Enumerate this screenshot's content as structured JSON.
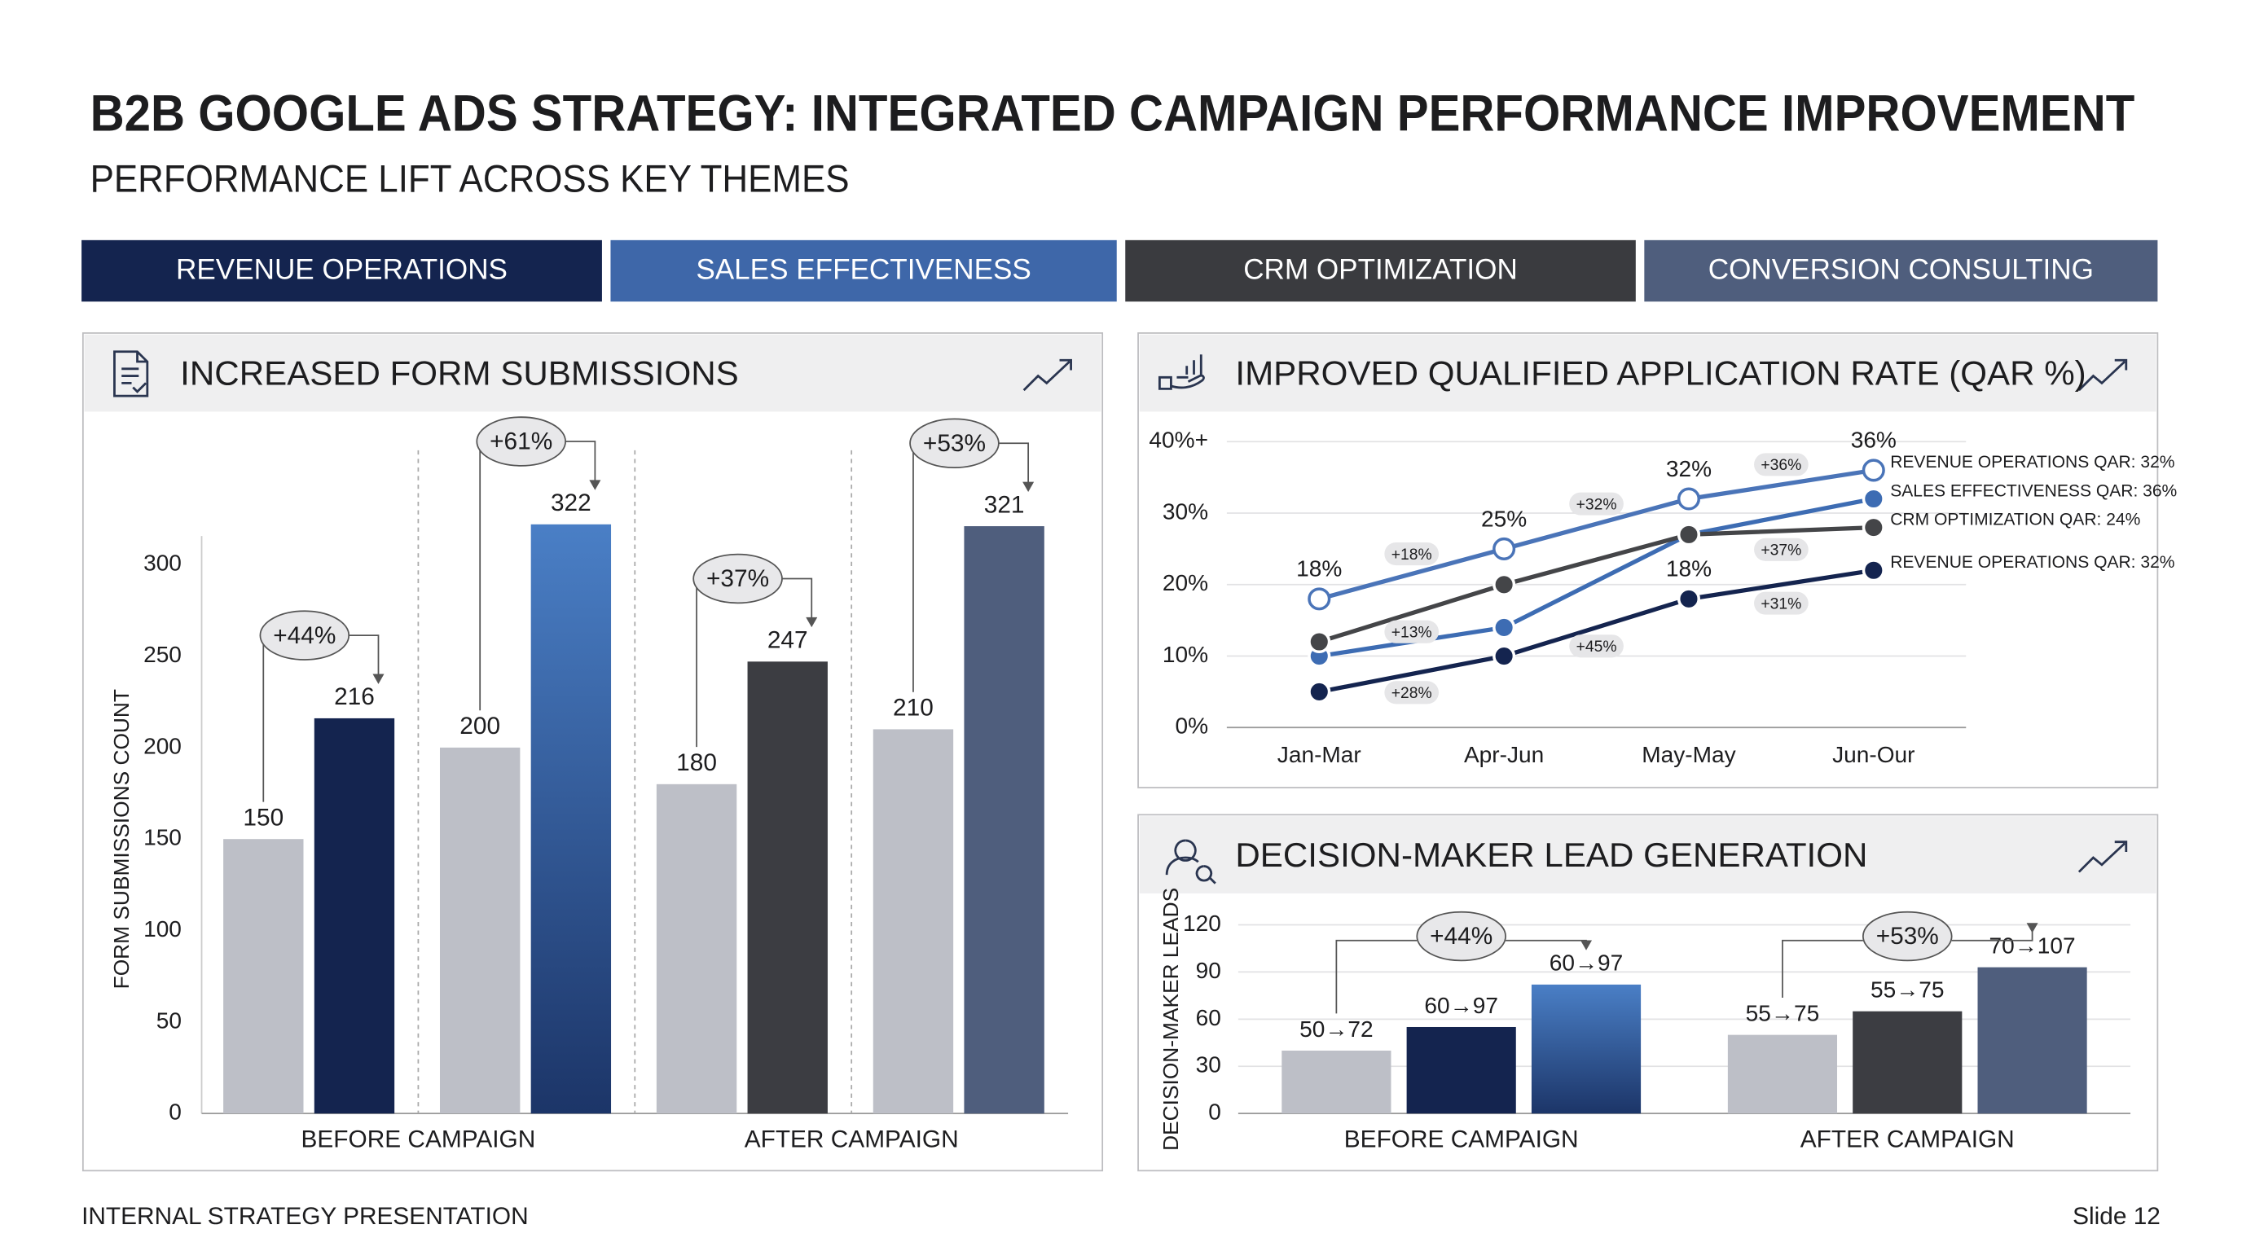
{
  "header": {
    "title": "B2B GOOGLE ADS STRATEGY: INTEGRATED CAMPAIGN PERFORMANCE IMPROVEMENT",
    "subtitle": "PERFORMANCE LIFT ACROSS KEY THEMES"
  },
  "tabs": [
    {
      "label": "REVENUE OPERATIONS",
      "color": "#14244f"
    },
    {
      "label": "SALES EFFECTIVENESS",
      "color": "#3e67a9"
    },
    {
      "label": "CRM OPTIMIZATION",
      "color": "#3a3b3f"
    },
    {
      "label": "CONVERSION CONSULTING",
      "color": "#4f5e7d"
    }
  ],
  "chart_data": [
    {
      "type": "paired-bar",
      "title": "INCREASED FORM SUBMISSIONS",
      "ylabel": "FORM SUBMISSIONS COUNT",
      "ylim": [
        0,
        300
      ],
      "yticks": [
        0,
        50,
        100,
        150,
        200,
        250,
        300
      ],
      "grid": false,
      "base_color": "#bdbfc7",
      "groups": [
        {
          "label": "BEFORE CAMPAIGN",
          "pairs": [
            {
              "values": [
                150,
                216
              ],
              "change": "+44%",
              "color": "#14244f"
            },
            {
              "values": [
                200,
                322
              ],
              "change": "+61%",
              "color": "#4a7fc6",
              "gradient": true
            }
          ]
        },
        {
          "label": "AFTER CAMPAIGN",
          "pairs": [
            {
              "values": [
                180,
                247
              ],
              "change": "+37%",
              "color": "#3c3d42"
            },
            {
              "values": [
                210,
                321
              ],
              "change": "+53%",
              "color": "#4f5e7d"
            }
          ]
        }
      ]
    },
    {
      "type": "line",
      "title": "IMPROVED QUALIFIED APPLICATION RATE (QAR %)",
      "x": [
        "Jan-Mar",
        "Apr-Jun",
        "May-May",
        "Jun-Our"
      ],
      "ylim": [
        0,
        40
      ],
      "yticks": [
        {
          "value": 0,
          "label": "0%"
        },
        {
          "value": 10,
          "label": "10%"
        },
        {
          "value": 20,
          "label": "20%"
        },
        {
          "value": 30,
          "label": "30%"
        },
        {
          "value": 40,
          "label": "40%+"
        }
      ],
      "grid": true,
      "legend": "right",
      "series": [
        {
          "name": "REVENUE OPERATIONS QAR: 32%",
          "color": "#4a74b8",
          "marker": "open",
          "values": [
            18,
            25,
            32,
            36
          ],
          "value_labels": [
            "18%",
            "25%",
            "32%",
            "36%"
          ],
          "changes": [
            "+18%",
            "+32%",
            "+36%"
          ]
        },
        {
          "name": "SALES EFFECTIVENESS QAR: 36%",
          "color": "#3d6cb3",
          "values": [
            10,
            14,
            27,
            32
          ]
        },
        {
          "name": "CRM OPTIMIZATION QAR: 24%",
          "color": "#444548",
          "values": [
            12,
            20,
            27,
            28
          ],
          "changes": [
            "+13%",
            null,
            "+37%"
          ]
        },
        {
          "name": "REVENUE OPERATIONS QAR: 32%",
          "color": "#14244f",
          "values": [
            5,
            10,
            18,
            22
          ],
          "value_labels": [
            null,
            null,
            "18%",
            null
          ],
          "changes": [
            "+28%",
            "+45%",
            "+31%"
          ]
        }
      ]
    },
    {
      "type": "grouped-bar",
      "title": "DECISION-MAKER LEAD GENERATION",
      "ylabel": "DECISION-MAKER LEADS",
      "ylim": [
        0,
        120
      ],
      "yticks": [
        0,
        30,
        60,
        90,
        120
      ],
      "grid": true,
      "groups": [
        {
          "label": "BEFORE CAMPAIGN",
          "change": "+44%",
          "bars": [
            {
              "value": 40,
              "note": "50→72",
              "color": "#bdbfc7"
            },
            {
              "value": 55,
              "note": "60→97",
              "color": "#14244f"
            },
            {
              "value": 82,
              "note": "60→97",
              "color": "#4a7fc6",
              "gradient": true
            }
          ]
        },
        {
          "label": "AFTER CAMPAIGN",
          "change": "+53%",
          "bars": [
            {
              "value": 50,
              "note": "55→75",
              "color": "#bdbfc7"
            },
            {
              "value": 65,
              "note": "55→75",
              "color": "#3c3d42"
            },
            {
              "value": 93,
              "note": "70→107",
              "color": "#4f5e7d"
            }
          ]
        }
      ]
    }
  ],
  "footer": {
    "left": "INTERNAL STRATEGY PRESENTATION",
    "right": "Slide 12"
  }
}
